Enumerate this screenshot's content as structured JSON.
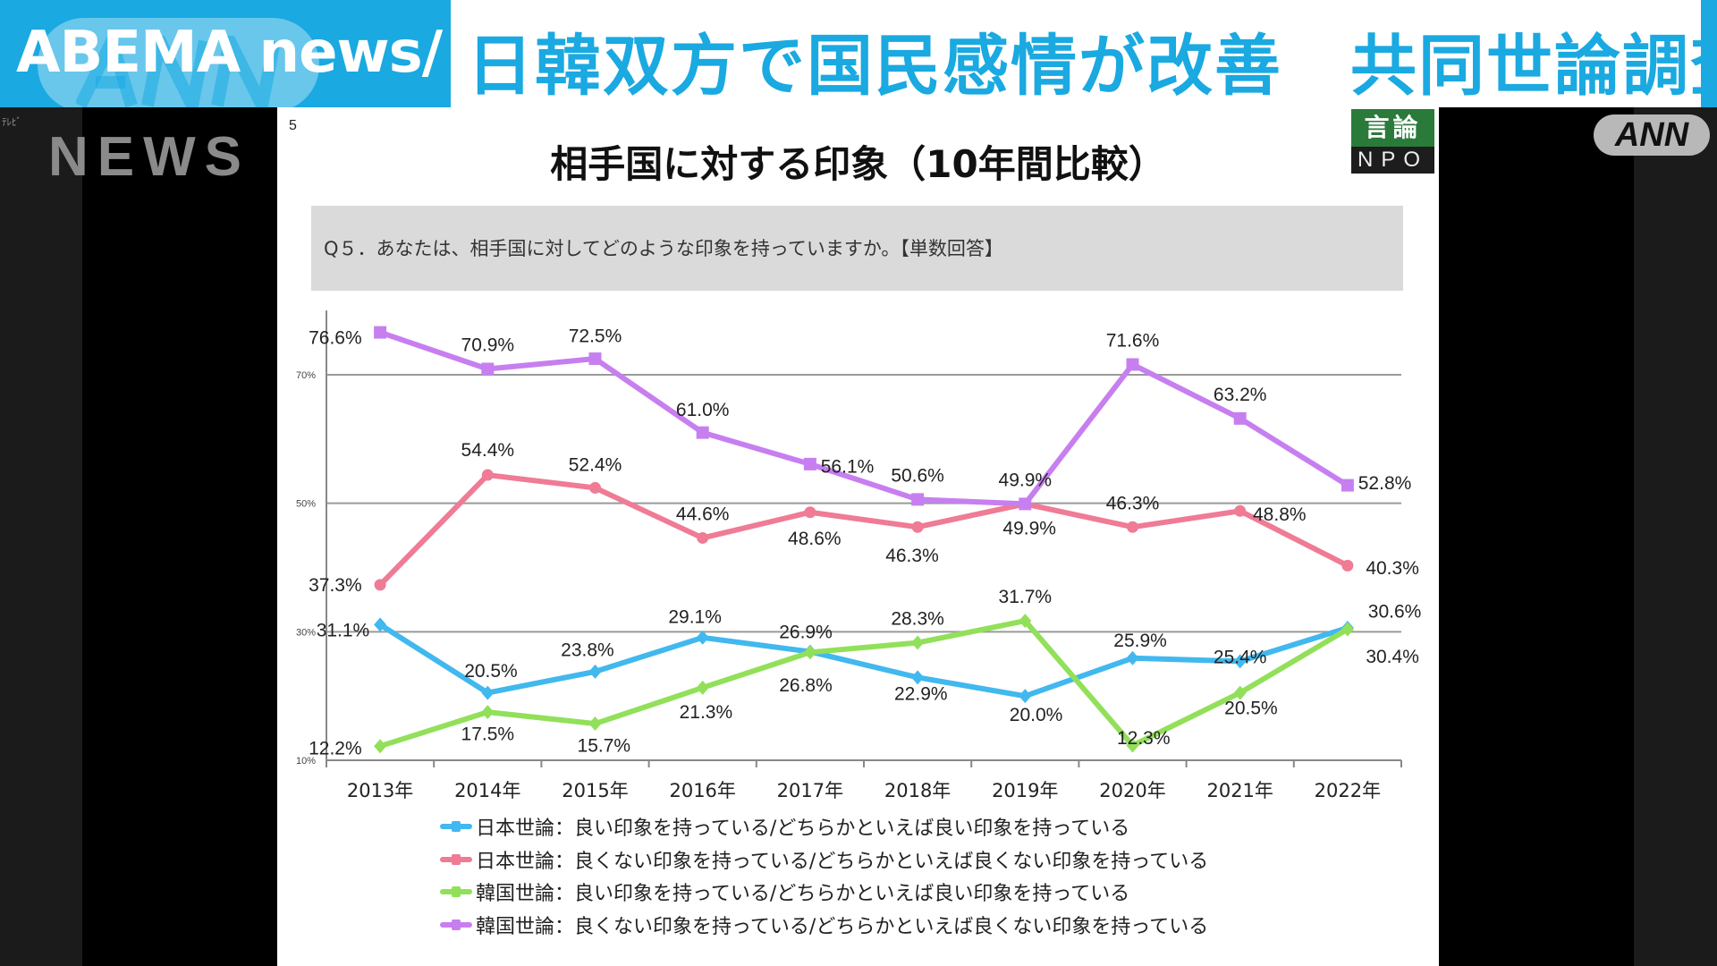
{
  "banner": {
    "logo_text": "ABEMA news/",
    "logo_watermark": "ANN",
    "headline": "日韓双方で国民感情が改善　共同世論調査",
    "accent_color": "#1aa9e1"
  },
  "broadcast": {
    "left_small": "ﾃﾚﾋﾞ",
    "news_watermark": "NEWS",
    "ann_badge": "ANN"
  },
  "slide": {
    "page_number": "5",
    "title": "相手国に対する印象（10年間比較）",
    "npo_logo": {
      "top": "言論",
      "bottom": "NPO"
    },
    "question": "Q５．あなたは、相手国に対してどのような印象を持っていますか。【単数回答】"
  },
  "chart_data": {
    "type": "line",
    "title": "相手国に対する印象（10年間比較）",
    "categories": [
      "2013年",
      "2014年",
      "2015年",
      "2016年",
      "2017年",
      "2018年",
      "2019年",
      "2020年",
      "2021年",
      "2022年"
    ],
    "yticks": [
      "10%",
      "30%",
      "50%",
      "70%"
    ],
    "ylim": [
      10,
      80
    ],
    "grid": true,
    "legend_placement": "bottom",
    "series": [
      {
        "name": "日本世論：良い印象を持っている/どちらかといえば良い印象を持っている",
        "color": "#41b8ee",
        "marker": "diamond",
        "values": [
          31.1,
          20.5,
          23.8,
          29.1,
          26.9,
          22.9,
          20.0,
          25.9,
          25.4,
          30.6
        ],
        "labels": [
          "31.1%",
          "20.5%",
          "23.8%",
          "29.1%",
          "26.9%",
          "22.9%",
          "20.0%",
          "25.9%",
          "25.4%",
          "30.6%"
        ]
      },
      {
        "name": "日本世論：良くない印象を持っている/どちらかといえば良くない印象を持っている",
        "color": "#ef7b95",
        "marker": "circle",
        "values": [
          37.3,
          54.4,
          52.4,
          44.6,
          48.6,
          46.3,
          49.9,
          46.3,
          48.8,
          40.3
        ],
        "labels": [
          "37.3%",
          "54.4%",
          "52.4%",
          "44.6%",
          "48.6%",
          "46.3%",
          "49.9%",
          "46.3%",
          "48.8%",
          "40.3%"
        ]
      },
      {
        "name": "韓国世論：良い印象を持っている/どちらかといえば良い印象を持っている",
        "color": "#92e05a",
        "marker": "triangle",
        "values": [
          12.2,
          17.5,
          15.7,
          21.3,
          26.8,
          28.3,
          31.7,
          12.3,
          20.5,
          30.4
        ],
        "labels": [
          "12.2%",
          "17.5%",
          "15.7%",
          "21.3%",
          "26.8%",
          "28.3%",
          "31.7%",
          "12.3%",
          "20.5%",
          "30.4%"
        ]
      },
      {
        "name": "韓国世論：良くない印象を持っている/どちらかといえば良くない印象を持っている",
        "color": "#c77ff0",
        "marker": "square",
        "values": [
          76.6,
          70.9,
          72.5,
          61.0,
          56.1,
          50.6,
          49.9,
          71.6,
          63.2,
          52.8
        ],
        "labels": [
          "76.6%",
          "70.9%",
          "72.5%",
          "61.0%",
          "56.1%",
          "50.6%",
          "49.9%",
          "71.6%",
          "63.2%",
          "52.8%"
        ]
      }
    ]
  }
}
